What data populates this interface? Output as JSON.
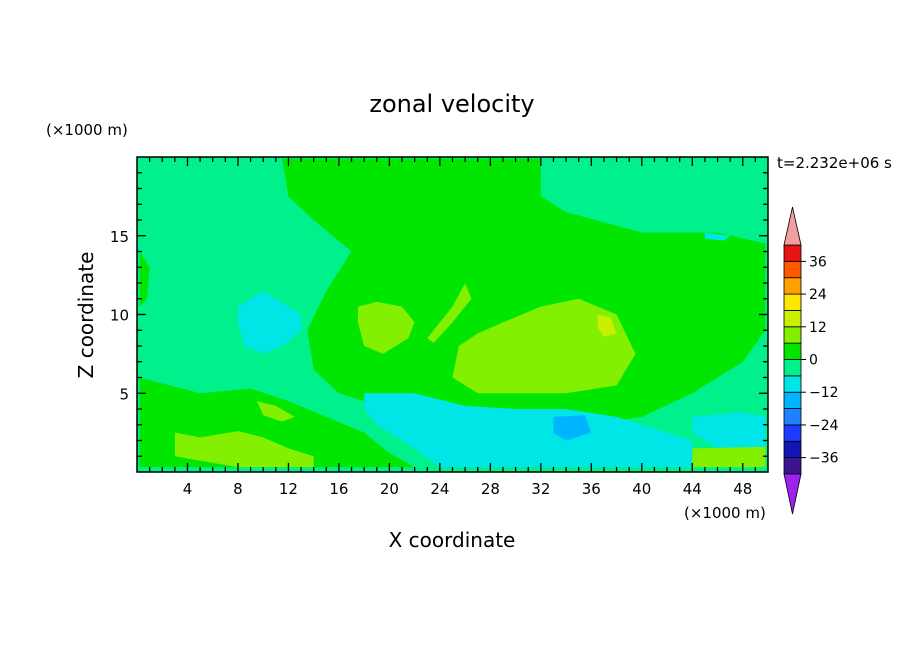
{
  "chart_data": {
    "type": "heatmap",
    "title": "zonal velocity",
    "xlabel": "X coordinate",
    "ylabel": "Z coordinate",
    "x_unit": "(×1000 m)",
    "y_unit": "(×1000 m)",
    "time_label": "t=2.232e+06 s",
    "xlim": [
      0,
      50
    ],
    "ylim": [
      0,
      20
    ],
    "x_ticks": [
      4,
      8,
      12,
      16,
      20,
      24,
      28,
      32,
      36,
      40,
      44,
      48
    ],
    "y_ticks": [
      5,
      10,
      15
    ],
    "grid": false,
    "colorbar": {
      "placement": "right",
      "levels": [
        -42,
        -36,
        -30,
        -24,
        -18,
        -12,
        -6,
        0,
        6,
        12,
        18,
        24,
        30,
        36,
        42
      ],
      "tick_labels": [
        "36",
        "24",
        "12",
        "0",
        "−12",
        "−24",
        "−36"
      ],
      "tick_values": [
        36,
        24,
        12,
        0,
        -12,
        -24,
        -36
      ],
      "colors": [
        "#a020f0",
        "#3c148c",
        "#1414b4",
        "#1e3cff",
        "#1e82ff",
        "#00b4ff",
        "#00e6e6",
        "#00f08c",
        "#00e600",
        "#82f000",
        "#c8f000",
        "#ffe600",
        "#ffa000",
        "#ff5a00",
        "#e61414",
        "#f0a0a0"
      ],
      "extend": "both"
    },
    "background_value": -3,
    "regions": [
      {
        "value": 3,
        "poly": [
          [
            11.5,
            19.9
          ],
          [
            32,
            19.9
          ],
          [
            32,
            17.5
          ],
          [
            34,
            16.5
          ],
          [
            40,
            15.2
          ],
          [
            46,
            15.2
          ],
          [
            49.8,
            14.5
          ],
          [
            49.8,
            9
          ],
          [
            48,
            7
          ],
          [
            44,
            5
          ],
          [
            40,
            3.5
          ],
          [
            36,
            3
          ],
          [
            30,
            3.5
          ],
          [
            24,
            4
          ],
          [
            20,
            4
          ],
          [
            16,
            5
          ],
          [
            14,
            6.5
          ],
          [
            13.5,
            9
          ],
          [
            15,
            11.5
          ],
          [
            17,
            14
          ],
          [
            14,
            16
          ],
          [
            12,
            17.5
          ]
        ]
      },
      {
        "value": 9,
        "poly": [
          [
            29,
            9.5
          ],
          [
            32,
            10.5
          ],
          [
            35,
            11
          ],
          [
            38,
            10
          ],
          [
            39.5,
            7.5
          ],
          [
            38,
            5.5
          ],
          [
            34,
            5
          ],
          [
            30,
            5
          ],
          [
            27,
            5
          ],
          [
            25,
            6
          ],
          [
            25.5,
            8
          ],
          [
            27,
            8.8
          ]
        ]
      },
      {
        "value": 9,
        "poly": [
          [
            17.5,
            10.5
          ],
          [
            19,
            10.8
          ],
          [
            21,
            10.5
          ],
          [
            22,
            9.5
          ],
          [
            21.5,
            8.5
          ],
          [
            19.5,
            7.5
          ],
          [
            18,
            8
          ],
          [
            17.5,
            9.5
          ]
        ]
      },
      {
        "value": 9,
        "poly": [
          [
            23,
            8.5
          ],
          [
            24,
            9.5
          ],
          [
            25,
            10.5
          ],
          [
            26,
            12
          ],
          [
            26.5,
            11
          ],
          [
            25,
            9.5
          ],
          [
            23.5,
            8.2
          ]
        ]
      },
      {
        "value": 15,
        "poly": [
          [
            36.5,
            10
          ],
          [
            37.5,
            9.8
          ],
          [
            38,
            8.8
          ],
          [
            37,
            8.6
          ],
          [
            36.5,
            9.2
          ]
        ]
      },
      {
        "value": -9,
        "poly": [
          [
            8,
            10.5
          ],
          [
            9,
            11
          ],
          [
            10,
            11.5
          ],
          [
            11,
            11
          ],
          [
            13,
            10
          ],
          [
            13,
            9
          ],
          [
            11.5,
            8
          ],
          [
            10,
            7.5
          ],
          [
            8.5,
            8
          ],
          [
            8,
            9.5
          ]
        ]
      },
      {
        "value": -9,
        "poly": [
          [
            18,
            5
          ],
          [
            22,
            5
          ],
          [
            26,
            4.2
          ],
          [
            30,
            4
          ],
          [
            34,
            4
          ],
          [
            38,
            3.5
          ],
          [
            42,
            2.5
          ],
          [
            44,
            2
          ],
          [
            44,
            0.3
          ],
          [
            24,
            0.3
          ],
          [
            22,
            1.5
          ],
          [
            19,
            3
          ],
          [
            18,
            4
          ]
        ]
      },
      {
        "value": -15,
        "poly": [
          [
            33,
            3.5
          ],
          [
            35.5,
            3.6
          ],
          [
            36,
            2.5
          ],
          [
            34,
            2
          ],
          [
            33,
            2.5
          ]
        ]
      },
      {
        "value": -9,
        "poly": [
          [
            44,
            3.5
          ],
          [
            48,
            3.8
          ],
          [
            49.8,
            3.5
          ],
          [
            49.8,
            1.5
          ],
          [
            46,
            1.5
          ],
          [
            44,
            2.5
          ]
        ]
      },
      {
        "value": 3,
        "poly": [
          [
            0.2,
            6
          ],
          [
            5,
            5
          ],
          [
            9,
            5.3
          ],
          [
            12,
            4.5
          ],
          [
            15,
            3.5
          ],
          [
            18,
            2.5
          ],
          [
            20,
            1.2
          ],
          [
            22,
            0.3
          ],
          [
            0.2,
            0.3
          ]
        ]
      },
      {
        "value": 9,
        "poly": [
          [
            3,
            2.5
          ],
          [
            5,
            2.2
          ],
          [
            8,
            2.6
          ],
          [
            10,
            2.2
          ],
          [
            12,
            1.5
          ],
          [
            14,
            1
          ],
          [
            14,
            0.3
          ],
          [
            8,
            0.3
          ],
          [
            3,
            1
          ]
        ]
      },
      {
        "value": 9,
        "poly": [
          [
            9.5,
            4.5
          ],
          [
            11,
            4.2
          ],
          [
            12.5,
            3.5
          ],
          [
            11.5,
            3.2
          ],
          [
            10,
            3.6
          ]
        ]
      },
      {
        "value": 9,
        "poly": [
          [
            44,
            1.5
          ],
          [
            49.8,
            1.6
          ],
          [
            49.8,
            0.3
          ],
          [
            44,
            0.3
          ]
        ]
      },
      {
        "value": 3,
        "poly": [
          [
            0.2,
            14
          ],
          [
            1,
            13
          ],
          [
            0.8,
            11
          ],
          [
            0.2,
            10.5
          ]
        ]
      },
      {
        "value": -9,
        "poly": [
          [
            45,
            15.2
          ],
          [
            47,
            15
          ],
          [
            46.5,
            14.7
          ],
          [
            45,
            14.8
          ]
        ]
      }
    ]
  }
}
